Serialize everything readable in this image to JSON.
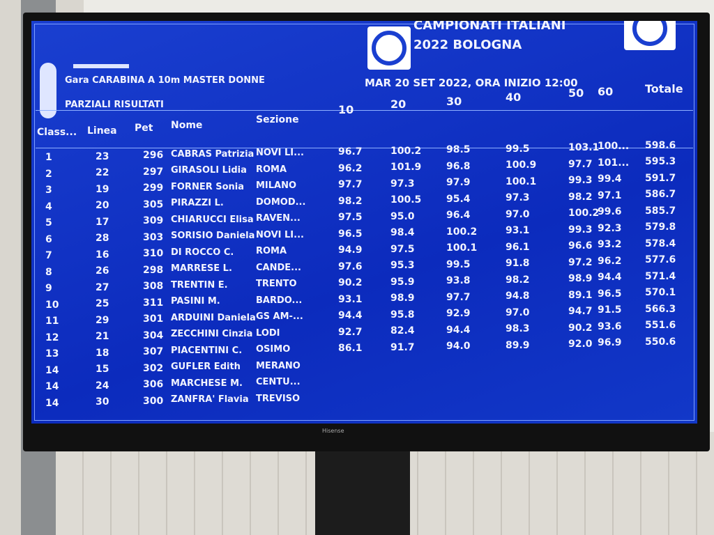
{
  "header": {
    "competition": "Gara CARABINA A 10m MASTER DONNE",
    "subtitle": "PARZIALI RISULTATI",
    "event_title": "CAMPIONATI ITALIANI",
    "event_subtitle": "2022 BOLOGNA",
    "date_time": "MAR 20 SET 2022, ORA INIZIO 12:00"
  },
  "table": {
    "columns": [
      "Class...",
      "Linea",
      "Pet",
      "Nome",
      "Sezione",
      "10",
      "20",
      "30",
      "40",
      "50",
      "60",
      "Totale"
    ],
    "rows": [
      [
        "1",
        "23",
        "296",
        "CABRAS Patrizia",
        "NOVI LI...",
        "96.7",
        "100.2",
        "98.5",
        "99.5",
        "103.1",
        "100...",
        "598.6"
      ],
      [
        "2",
        "22",
        "297",
        "GIRASOLI Lidia",
        "ROMA",
        "96.2",
        "101.9",
        "96.8",
        "100.9",
        "97.7",
        "101...",
        "595.3"
      ],
      [
        "3",
        "19",
        "299",
        "FORNER Sonia",
        "MILANO",
        "97.7",
        "97.3",
        "97.9",
        "100.1",
        "99.3",
        "99.4",
        "591.7"
      ],
      [
        "4",
        "20",
        "305",
        "PIRAZZI L.",
        "DOMOD...",
        "98.2",
        "100.5",
        "95.4",
        "97.3",
        "98.2",
        "97.1",
        "586.7"
      ],
      [
        "5",
        "17",
        "309",
        "CHIARUCCI Elisa",
        "RAVEN...",
        "97.5",
        "95.0",
        "96.4",
        "97.0",
        "100.2",
        "99.6",
        "585.7"
      ],
      [
        "6",
        "28",
        "303",
        "SORISIO Daniela",
        "NOVI LI...",
        "96.5",
        "98.4",
        "100.2",
        "93.1",
        "99.3",
        "92.3",
        "579.8"
      ],
      [
        "7",
        "16",
        "310",
        "DI ROCCO C.",
        "ROMA",
        "94.9",
        "97.5",
        "100.1",
        "96.1",
        "96.6",
        "93.2",
        "578.4"
      ],
      [
        "8",
        "26",
        "298",
        "MARRESE L.",
        "CANDE...",
        "97.6",
        "95.3",
        "99.5",
        "91.8",
        "97.2",
        "96.2",
        "577.6"
      ],
      [
        "9",
        "27",
        "308",
        "TRENTIN E.",
        "TRENTO",
        "90.2",
        "95.9",
        "93.8",
        "98.2",
        "98.9",
        "94.4",
        "571.4"
      ],
      [
        "10",
        "25",
        "311",
        "PASINI M.",
        "BARDO...",
        "93.1",
        "98.9",
        "97.7",
        "94.8",
        "89.1",
        "96.5",
        "570.1"
      ],
      [
        "11",
        "29",
        "301",
        "ARDUINI Daniela",
        "GS AM-...",
        "94.4",
        "95.8",
        "92.9",
        "97.0",
        "94.7",
        "91.5",
        "566.3"
      ],
      [
        "12",
        "21",
        "304",
        "ZECCHINI Cinzia",
        "LODI",
        "92.7",
        "82.4",
        "94.4",
        "98.3",
        "90.2",
        "93.6",
        "551.6"
      ],
      [
        "13",
        "18",
        "307",
        "PIACENTINI C.",
        "OSIMO",
        "86.1",
        "91.7",
        "94.0",
        "89.9",
        "92.0",
        "96.9",
        "550.6"
      ],
      [
        "14",
        "15",
        "302",
        "GUFLER Edith",
        "MERANO"
      ],
      [
        "14",
        "24",
        "306",
        "MARCHESE M.",
        "CENTU..."
      ],
      [
        "14",
        "30",
        "300",
        "ZANFRA' Flavia",
        "TREVISO"
      ]
    ]
  },
  "tv": {
    "brand": "Hisense"
  }
}
